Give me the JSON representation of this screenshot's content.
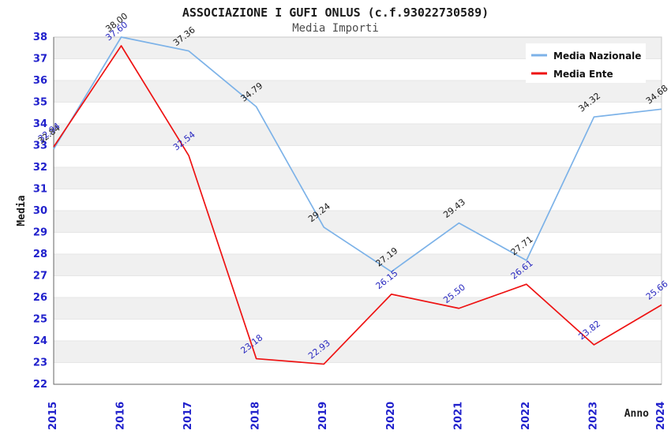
{
  "chart_data": {
    "type": "line",
    "title": "ASSOCIAZIONE I GUFI ONLUS (c.f.93022730589)",
    "subtitle": "Media Importi",
    "xlabel": "Anno",
    "ylabel": "Media",
    "x": [
      "2015",
      "2016",
      "2017",
      "2018",
      "2019",
      "2020",
      "2021",
      "2022",
      "2023",
      "2024"
    ],
    "ylim": [
      22,
      38
    ],
    "ytick_interval": 1,
    "grid": "horizontal-bands",
    "legend_position": "top-right",
    "series": [
      {
        "name": "Media Nazionale",
        "color": "#7cb2e8",
        "label_color": "#1a1a1a",
        "values": [
          32.84,
          38.0,
          37.36,
          34.79,
          29.24,
          27.19,
          29.43,
          27.71,
          34.32,
          34.68
        ]
      },
      {
        "name": "Media Ente",
        "color": "#ee1212",
        "label_color": "#2a2ac0",
        "values": [
          32.94,
          37.6,
          32.54,
          23.18,
          22.93,
          26.15,
          25.5,
          26.61,
          23.82,
          25.66
        ]
      }
    ],
    "colors": {
      "tick_label": "#2121cc",
      "band": "#f0f0f0",
      "gridline": "#e6e6e6",
      "plot_border": "#c8c8c8",
      "axis_line": "#666666",
      "background": "#ffffff",
      "legend_background": "#ffffff"
    }
  }
}
